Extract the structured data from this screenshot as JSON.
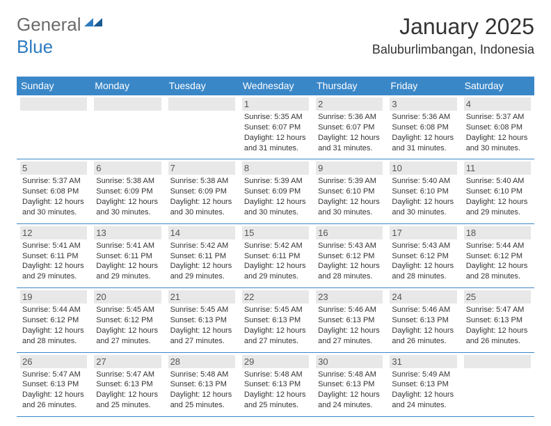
{
  "logo": {
    "text1": "General",
    "text2": "Blue"
  },
  "title": "January 2025",
  "location": "Baluburlimbangan, Indonesia",
  "colors": {
    "header_bg": "#3a87c8",
    "header_text": "#ffffff",
    "daynum_bg": "#e8e8e8",
    "border": "#3a87c8",
    "logo_gray": "#6a6a6a",
    "logo_blue": "#2d7bbf"
  },
  "weekdays": [
    "Sunday",
    "Monday",
    "Tuesday",
    "Wednesday",
    "Thursday",
    "Friday",
    "Saturday"
  ],
  "weeks": [
    [
      null,
      null,
      null,
      {
        "n": "1",
        "sr": "5:35 AM",
        "ss": "6:07 PM",
        "dl": "12 hours and 31 minutes."
      },
      {
        "n": "2",
        "sr": "5:36 AM",
        "ss": "6:07 PM",
        "dl": "12 hours and 31 minutes."
      },
      {
        "n": "3",
        "sr": "5:36 AM",
        "ss": "6:08 PM",
        "dl": "12 hours and 31 minutes."
      },
      {
        "n": "4",
        "sr": "5:37 AM",
        "ss": "6:08 PM",
        "dl": "12 hours and 30 minutes."
      }
    ],
    [
      {
        "n": "5",
        "sr": "5:37 AM",
        "ss": "6:08 PM",
        "dl": "12 hours and 30 minutes."
      },
      {
        "n": "6",
        "sr": "5:38 AM",
        "ss": "6:09 PM",
        "dl": "12 hours and 30 minutes."
      },
      {
        "n": "7",
        "sr": "5:38 AM",
        "ss": "6:09 PM",
        "dl": "12 hours and 30 minutes."
      },
      {
        "n": "8",
        "sr": "5:39 AM",
        "ss": "6:09 PM",
        "dl": "12 hours and 30 minutes."
      },
      {
        "n": "9",
        "sr": "5:39 AM",
        "ss": "6:10 PM",
        "dl": "12 hours and 30 minutes."
      },
      {
        "n": "10",
        "sr": "5:40 AM",
        "ss": "6:10 PM",
        "dl": "12 hours and 30 minutes."
      },
      {
        "n": "11",
        "sr": "5:40 AM",
        "ss": "6:10 PM",
        "dl": "12 hours and 29 minutes."
      }
    ],
    [
      {
        "n": "12",
        "sr": "5:41 AM",
        "ss": "6:11 PM",
        "dl": "12 hours and 29 minutes."
      },
      {
        "n": "13",
        "sr": "5:41 AM",
        "ss": "6:11 PM",
        "dl": "12 hours and 29 minutes."
      },
      {
        "n": "14",
        "sr": "5:42 AM",
        "ss": "6:11 PM",
        "dl": "12 hours and 29 minutes."
      },
      {
        "n": "15",
        "sr": "5:42 AM",
        "ss": "6:11 PM",
        "dl": "12 hours and 29 minutes."
      },
      {
        "n": "16",
        "sr": "5:43 AM",
        "ss": "6:12 PM",
        "dl": "12 hours and 28 minutes."
      },
      {
        "n": "17",
        "sr": "5:43 AM",
        "ss": "6:12 PM",
        "dl": "12 hours and 28 minutes."
      },
      {
        "n": "18",
        "sr": "5:44 AM",
        "ss": "6:12 PM",
        "dl": "12 hours and 28 minutes."
      }
    ],
    [
      {
        "n": "19",
        "sr": "5:44 AM",
        "ss": "6:12 PM",
        "dl": "12 hours and 28 minutes."
      },
      {
        "n": "20",
        "sr": "5:45 AM",
        "ss": "6:12 PM",
        "dl": "12 hours and 27 minutes."
      },
      {
        "n": "21",
        "sr": "5:45 AM",
        "ss": "6:13 PM",
        "dl": "12 hours and 27 minutes."
      },
      {
        "n": "22",
        "sr": "5:45 AM",
        "ss": "6:13 PM",
        "dl": "12 hours and 27 minutes."
      },
      {
        "n": "23",
        "sr": "5:46 AM",
        "ss": "6:13 PM",
        "dl": "12 hours and 27 minutes."
      },
      {
        "n": "24",
        "sr": "5:46 AM",
        "ss": "6:13 PM",
        "dl": "12 hours and 26 minutes."
      },
      {
        "n": "25",
        "sr": "5:47 AM",
        "ss": "6:13 PM",
        "dl": "12 hours and 26 minutes."
      }
    ],
    [
      {
        "n": "26",
        "sr": "5:47 AM",
        "ss": "6:13 PM",
        "dl": "12 hours and 26 minutes."
      },
      {
        "n": "27",
        "sr": "5:47 AM",
        "ss": "6:13 PM",
        "dl": "12 hours and 25 minutes."
      },
      {
        "n": "28",
        "sr": "5:48 AM",
        "ss": "6:13 PM",
        "dl": "12 hours and 25 minutes."
      },
      {
        "n": "29",
        "sr": "5:48 AM",
        "ss": "6:13 PM",
        "dl": "12 hours and 25 minutes."
      },
      {
        "n": "30",
        "sr": "5:48 AM",
        "ss": "6:13 PM",
        "dl": "12 hours and 24 minutes."
      },
      {
        "n": "31",
        "sr": "5:49 AM",
        "ss": "6:13 PM",
        "dl": "12 hours and 24 minutes."
      },
      null
    ]
  ],
  "labels": {
    "sunrise": "Sunrise:",
    "sunset": "Sunset:",
    "daylight": "Daylight:"
  }
}
